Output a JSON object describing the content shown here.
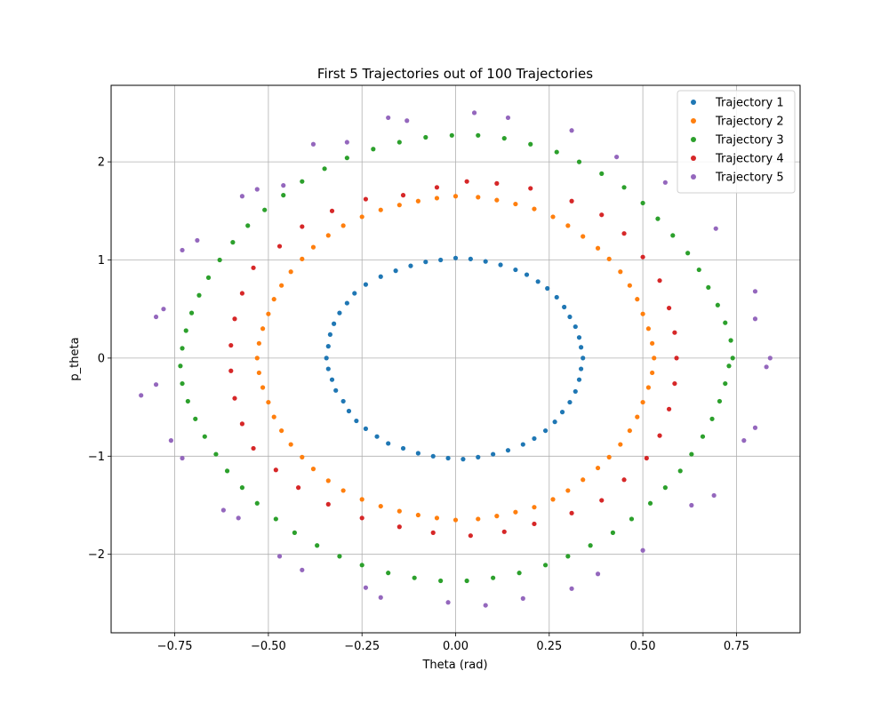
{
  "chart_data": {
    "type": "scatter",
    "title": "First 5 Trajectories out of 100 Trajectories",
    "xlabel": "Theta (rad)",
    "ylabel": "p_theta",
    "xlim": [
      -0.92,
      0.92
    ],
    "ylim": [
      -2.8,
      2.78
    ],
    "xticks": [
      -0.75,
      -0.5,
      -0.25,
      0.0,
      0.25,
      0.5,
      0.75
    ],
    "xtick_labels": [
      "−0.75",
      "−0.50",
      "−0.25",
      "0.00",
      "0.25",
      "0.50",
      "0.75"
    ],
    "yticks": [
      -2,
      -1,
      0,
      1,
      2
    ],
    "ytick_labels": [
      "−2",
      "−1",
      "0",
      "1",
      "2"
    ],
    "grid": true,
    "legend_position": "top-right",
    "series": [
      {
        "name": "Trajectory 1",
        "color": "#1f77b4",
        "points": [
          [
            0.34,
            0.0
          ],
          [
            0.335,
            0.11
          ],
          [
            0.33,
            0.21
          ],
          [
            0.32,
            0.32
          ],
          [
            0.305,
            0.42
          ],
          [
            0.29,
            0.52
          ],
          [
            0.27,
            0.62
          ],
          [
            0.245,
            0.71
          ],
          [
            0.22,
            0.78
          ],
          [
            0.19,
            0.85
          ],
          [
            0.16,
            0.9
          ],
          [
            0.12,
            0.95
          ],
          [
            0.08,
            0.985
          ],
          [
            0.04,
            1.01
          ],
          [
            0.0,
            1.02
          ],
          [
            -0.04,
            1.0
          ],
          [
            -0.08,
            0.98
          ],
          [
            -0.12,
            0.94
          ],
          [
            -0.16,
            0.89
          ],
          [
            -0.2,
            0.83
          ],
          [
            -0.24,
            0.75
          ],
          [
            -0.27,
            0.66
          ],
          [
            -0.29,
            0.56
          ],
          [
            -0.31,
            0.46
          ],
          [
            -0.325,
            0.35
          ],
          [
            -0.335,
            0.24
          ],
          [
            -0.34,
            0.12
          ],
          [
            -0.345,
            0.0
          ],
          [
            -0.34,
            -0.11
          ],
          [
            -0.33,
            -0.22
          ],
          [
            -0.32,
            -0.33
          ],
          [
            -0.3,
            -0.44
          ],
          [
            -0.285,
            -0.54
          ],
          [
            -0.265,
            -0.64
          ],
          [
            -0.24,
            -0.72
          ],
          [
            -0.21,
            -0.8
          ],
          [
            -0.18,
            -0.87
          ],
          [
            -0.14,
            -0.92
          ],
          [
            -0.1,
            -0.97
          ],
          [
            -0.06,
            -1.0
          ],
          [
            -0.02,
            -1.02
          ],
          [
            0.02,
            -1.03
          ],
          [
            0.06,
            -1.01
          ],
          [
            0.1,
            -0.98
          ],
          [
            0.14,
            -0.94
          ],
          [
            0.18,
            -0.88
          ],
          [
            0.21,
            -0.82
          ],
          [
            0.24,
            -0.74
          ],
          [
            0.265,
            -0.65
          ],
          [
            0.285,
            -0.55
          ],
          [
            0.305,
            -0.45
          ],
          [
            0.32,
            -0.34
          ],
          [
            0.33,
            -0.22
          ],
          [
            0.335,
            -0.11
          ]
        ]
      },
      {
        "name": "Trajectory 2",
        "color": "#ff7f0e",
        "points": [
          [
            0.53,
            0.0
          ],
          [
            0.525,
            0.15
          ],
          [
            0.515,
            0.3
          ],
          [
            0.5,
            0.45
          ],
          [
            0.485,
            0.6
          ],
          [
            0.465,
            0.74
          ],
          [
            0.44,
            0.88
          ],
          [
            0.41,
            1.01
          ],
          [
            0.38,
            1.12
          ],
          [
            0.34,
            1.24
          ],
          [
            0.3,
            1.35
          ],
          [
            0.26,
            1.44
          ],
          [
            0.21,
            1.52
          ],
          [
            0.16,
            1.57
          ],
          [
            0.11,
            1.61
          ],
          [
            0.06,
            1.64
          ],
          [
            0.0,
            1.65
          ],
          [
            -0.05,
            1.63
          ],
          [
            -0.1,
            1.6
          ],
          [
            -0.15,
            1.56
          ],
          [
            -0.2,
            1.51
          ],
          [
            -0.25,
            1.44
          ],
          [
            -0.3,
            1.35
          ],
          [
            -0.34,
            1.25
          ],
          [
            -0.38,
            1.13
          ],
          [
            -0.41,
            1.01
          ],
          [
            -0.44,
            0.88
          ],
          [
            -0.465,
            0.74
          ],
          [
            -0.485,
            0.6
          ],
          [
            -0.5,
            0.45
          ],
          [
            -0.515,
            0.3
          ],
          [
            -0.525,
            0.15
          ],
          [
            -0.53,
            0.0
          ],
          [
            -0.525,
            -0.15
          ],
          [
            -0.515,
            -0.3
          ],
          [
            -0.5,
            -0.45
          ],
          [
            -0.485,
            -0.6
          ],
          [
            -0.465,
            -0.74
          ],
          [
            -0.44,
            -0.88
          ],
          [
            -0.41,
            -1.01
          ],
          [
            -0.38,
            -1.13
          ],
          [
            -0.34,
            -1.25
          ],
          [
            -0.3,
            -1.35
          ],
          [
            -0.25,
            -1.44
          ],
          [
            -0.2,
            -1.51
          ],
          [
            -0.15,
            -1.56
          ],
          [
            -0.1,
            -1.6
          ],
          [
            -0.05,
            -1.63
          ],
          [
            0.0,
            -1.65
          ],
          [
            0.06,
            -1.64
          ],
          [
            0.11,
            -1.61
          ],
          [
            0.16,
            -1.57
          ],
          [
            0.21,
            -1.52
          ],
          [
            0.26,
            -1.44
          ],
          [
            0.3,
            -1.35
          ],
          [
            0.34,
            -1.24
          ],
          [
            0.38,
            -1.12
          ],
          [
            0.41,
            -1.01
          ],
          [
            0.44,
            -0.88
          ],
          [
            0.465,
            -0.74
          ],
          [
            0.485,
            -0.6
          ],
          [
            0.5,
            -0.45
          ],
          [
            0.515,
            -0.3
          ],
          [
            0.525,
            -0.15
          ]
        ]
      },
      {
        "name": "Trajectory 3",
        "color": "#2ca02c",
        "points": [
          [
            0.74,
            0.0
          ],
          [
            0.735,
            0.18
          ],
          [
            0.72,
            0.36
          ],
          [
            0.7,
            0.54
          ],
          [
            0.675,
            0.72
          ],
          [
            0.65,
            0.9
          ],
          [
            0.62,
            1.07
          ],
          [
            0.58,
            1.25
          ],
          [
            0.54,
            1.42
          ],
          [
            0.5,
            1.58
          ],
          [
            0.45,
            1.74
          ],
          [
            0.39,
            1.88
          ],
          [
            0.33,
            2.0
          ],
          [
            0.27,
            2.1
          ],
          [
            0.2,
            2.18
          ],
          [
            0.13,
            2.24
          ],
          [
            0.06,
            2.27
          ],
          [
            -0.01,
            2.27
          ],
          [
            -0.08,
            2.25
          ],
          [
            -0.15,
            2.2
          ],
          [
            -0.22,
            2.13
          ],
          [
            -0.29,
            2.04
          ],
          [
            -0.35,
            1.93
          ],
          [
            -0.41,
            1.8
          ],
          [
            -0.46,
            1.66
          ],
          [
            -0.51,
            1.51
          ],
          [
            -0.555,
            1.35
          ],
          [
            -0.595,
            1.18
          ],
          [
            -0.63,
            1.0
          ],
          [
            -0.66,
            0.82
          ],
          [
            -0.685,
            0.64
          ],
          [
            -0.705,
            0.46
          ],
          [
            -0.72,
            0.28
          ],
          [
            -0.73,
            0.1
          ],
          [
            -0.735,
            -0.08
          ],
          [
            -0.73,
            -0.26
          ],
          [
            -0.715,
            -0.44
          ],
          [
            -0.695,
            -0.62
          ],
          [
            -0.67,
            -0.8
          ],
          [
            -0.64,
            -0.98
          ],
          [
            -0.61,
            -1.15
          ],
          [
            -0.57,
            -1.32
          ],
          [
            -0.53,
            -1.48
          ],
          [
            -0.48,
            -1.64
          ],
          [
            -0.43,
            -1.78
          ],
          [
            -0.37,
            -1.91
          ],
          [
            -0.31,
            -2.02
          ],
          [
            -0.25,
            -2.11
          ],
          [
            -0.18,
            -2.19
          ],
          [
            -0.11,
            -2.24
          ],
          [
            -0.04,
            -2.27
          ],
          [
            0.03,
            -2.27
          ],
          [
            0.1,
            -2.24
          ],
          [
            0.17,
            -2.19
          ],
          [
            0.24,
            -2.11
          ],
          [
            0.3,
            -2.02
          ],
          [
            0.36,
            -1.91
          ],
          [
            0.42,
            -1.78
          ],
          [
            0.47,
            -1.64
          ],
          [
            0.52,
            -1.48
          ],
          [
            0.56,
            -1.32
          ],
          [
            0.6,
            -1.15
          ],
          [
            0.63,
            -0.98
          ],
          [
            0.66,
            -0.8
          ],
          [
            0.685,
            -0.62
          ],
          [
            0.705,
            -0.44
          ],
          [
            0.72,
            -0.26
          ],
          [
            0.73,
            -0.08
          ]
        ]
      },
      {
        "name": "Trajectory 4",
        "color": "#d62728",
        "points": [
          [
            0.59,
            0.0
          ],
          [
            0.585,
            0.26
          ],
          [
            0.57,
            0.51
          ],
          [
            0.545,
            0.79
          ],
          [
            0.5,
            1.03
          ],
          [
            0.45,
            1.27
          ],
          [
            0.39,
            1.46
          ],
          [
            0.31,
            1.6
          ],
          [
            0.2,
            1.73
          ],
          [
            0.11,
            1.78
          ],
          [
            0.03,
            1.8
          ],
          [
            -0.05,
            1.74
          ],
          [
            -0.14,
            1.66
          ],
          [
            -0.24,
            1.62
          ],
          [
            -0.33,
            1.5
          ],
          [
            -0.41,
            1.34
          ],
          [
            -0.47,
            1.14
          ],
          [
            -0.54,
            0.92
          ],
          [
            -0.57,
            0.66
          ],
          [
            -0.59,
            0.4
          ],
          [
            -0.6,
            0.13
          ],
          [
            -0.6,
            -0.13
          ],
          [
            -0.59,
            -0.41
          ],
          [
            -0.57,
            -0.67
          ],
          [
            -0.54,
            -0.92
          ],
          [
            -0.48,
            -1.14
          ],
          [
            -0.42,
            -1.32
          ],
          [
            -0.34,
            -1.49
          ],
          [
            -0.25,
            -1.63
          ],
          [
            -0.15,
            -1.72
          ],
          [
            -0.06,
            -1.78
          ],
          [
            0.04,
            -1.81
          ],
          [
            0.13,
            -1.77
          ],
          [
            0.21,
            -1.69
          ],
          [
            0.31,
            -1.58
          ],
          [
            0.39,
            -1.45
          ],
          [
            0.45,
            -1.24
          ],
          [
            0.51,
            -1.02
          ],
          [
            0.545,
            -0.79
          ],
          [
            0.57,
            -0.52
          ],
          [
            0.585,
            -0.26
          ]
        ]
      },
      {
        "name": "Trajectory 5",
        "color": "#9467bd",
        "points": [
          [
            0.84,
            0.0
          ],
          [
            0.8,
            0.4
          ],
          [
            0.8,
            0.68
          ],
          [
            0.695,
            1.32
          ],
          [
            0.56,
            1.79
          ],
          [
            0.43,
            2.05
          ],
          [
            0.31,
            2.32
          ],
          [
            0.14,
            2.45
          ],
          [
            0.05,
            2.5
          ],
          [
            -0.13,
            2.42
          ],
          [
            -0.18,
            2.45
          ],
          [
            -0.29,
            2.2
          ],
          [
            -0.38,
            2.18
          ],
          [
            -0.46,
            1.76
          ],
          [
            -0.53,
            1.72
          ],
          [
            -0.57,
            1.65
          ],
          [
            -0.69,
            1.2
          ],
          [
            -0.73,
            1.1
          ],
          [
            -0.78,
            0.5
          ],
          [
            -0.8,
            0.42
          ],
          [
            -0.84,
            -0.38
          ],
          [
            -0.8,
            -0.27
          ],
          [
            -0.76,
            -0.84
          ],
          [
            -0.73,
            -1.02
          ],
          [
            -0.62,
            -1.55
          ],
          [
            -0.58,
            -1.63
          ],
          [
            -0.47,
            -2.02
          ],
          [
            -0.41,
            -2.16
          ],
          [
            -0.24,
            -2.34
          ],
          [
            -0.2,
            -2.44
          ],
          [
            -0.02,
            -2.49
          ],
          [
            0.08,
            -2.52
          ],
          [
            0.18,
            -2.45
          ],
          [
            0.31,
            -2.35
          ],
          [
            0.38,
            -2.2
          ],
          [
            0.5,
            -1.96
          ],
          [
            0.63,
            -1.5
          ],
          [
            0.69,
            -1.4
          ],
          [
            0.77,
            -0.84
          ],
          [
            0.8,
            -0.71
          ],
          [
            0.83,
            -0.09
          ]
        ]
      }
    ]
  }
}
